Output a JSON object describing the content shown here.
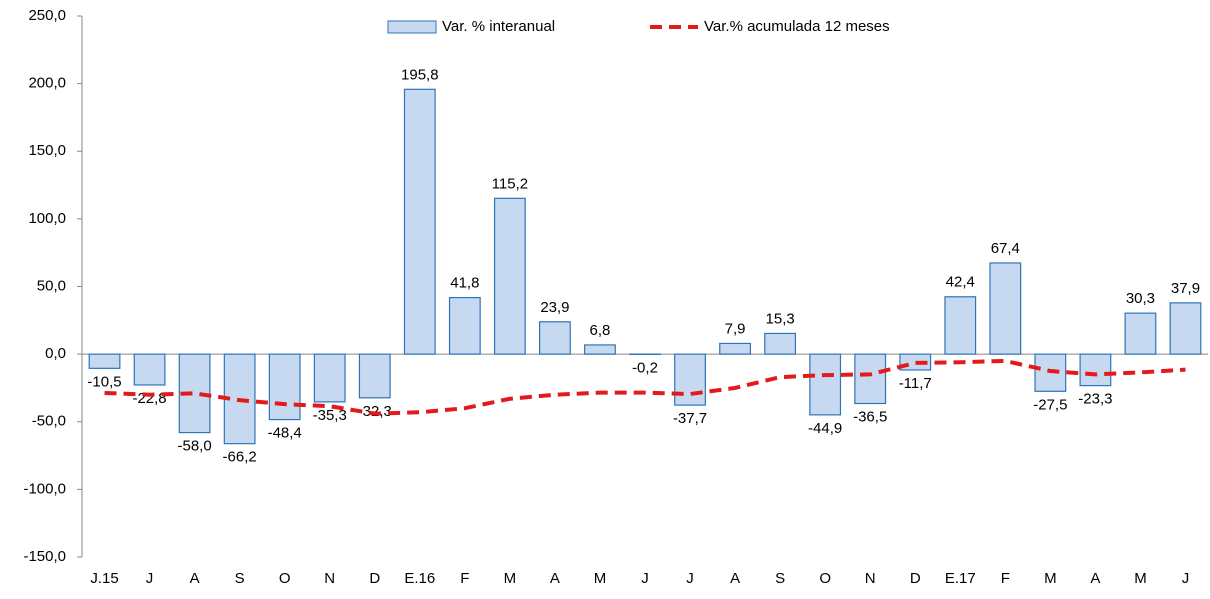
{
  "chart_data": {
    "type": "bar-line",
    "categories": [
      "J.15",
      "J",
      "A",
      "S",
      "O",
      "N",
      "D",
      "E.16",
      "F",
      "M",
      "A",
      "M",
      "J",
      "J",
      "A",
      "S",
      "O",
      "N",
      "D",
      "E.17",
      "F",
      "M",
      "A",
      "M",
      "J"
    ],
    "series": [
      {
        "name": "Var. % interanual",
        "type": "bar",
        "color": "#c6d9f1",
        "edge_color": "#2e75b6",
        "values": [
          -10.5,
          -22.8,
          -58.0,
          -66.2,
          -48.4,
          -35.3,
          -32.3,
          195.8,
          41.8,
          115.2,
          23.9,
          6.8,
          -0.2,
          -37.7,
          7.9,
          15.3,
          -44.9,
          -36.5,
          -11.7,
          42.4,
          67.4,
          -27.5,
          -23.3,
          30.3,
          37.9
        ],
        "value_labels": [
          "-10,5",
          "-22,8",
          "-58,0",
          "-66,2",
          "-48,4",
          "-35,3",
          "-32,3",
          "195,8",
          "41,8",
          "115,2",
          "23,9",
          "6,8",
          "-0,2",
          "-37,7",
          "7,9",
          "15,3",
          "-44,9",
          "-36,5",
          "-11,7",
          "42,4",
          "67,4",
          "-27,5",
          "-23,3",
          "30,3",
          "37,9"
        ]
      },
      {
        "name": "Var.% acumulada 12 meses",
        "type": "line",
        "color": "#e31a1c",
        "dashed": true,
        "values": [
          -28.7,
          -30,
          -29,
          -34,
          -37,
          -38.5,
          -44,
          -43,
          -40,
          -33,
          -30,
          -28.5,
          -28.5,
          -29.5,
          -25,
          -17,
          -15.5,
          -15,
          -6.5,
          -6,
          -5,
          -12.5,
          -15,
          -13.5,
          -11.5
        ]
      }
    ],
    "ylim": [
      -150,
      250
    ],
    "yticks": [
      {
        "value": -150,
        "label": "-150,0"
      },
      {
        "value": -100,
        "label": "-100,0"
      },
      {
        "value": -50,
        "label": "-50,0"
      },
      {
        "value": 0,
        "label": "0,0"
      },
      {
        "value": 50,
        "label": "50,0"
      },
      {
        "value": 100,
        "label": "100,0"
      },
      {
        "value": 150,
        "label": "150,0"
      },
      {
        "value": 200,
        "label": "200,0"
      },
      {
        "value": 250,
        "label": "250,0"
      }
    ],
    "legend": "top"
  }
}
